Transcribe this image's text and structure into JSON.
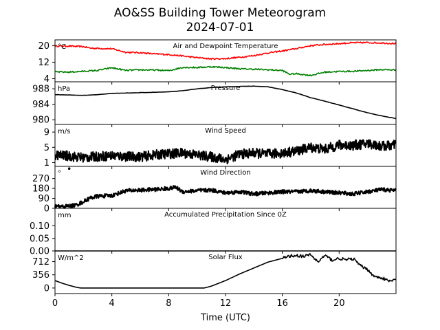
{
  "figure": {
    "title_line1": "AO&SS Building Tower Meteorogram",
    "title_line2": "2024-07-01",
    "xlabel": "Time (UTC)",
    "x_ticks": [
      "0",
      "4",
      "8",
      "12",
      "16",
      "20"
    ]
  },
  "chart_data": [
    {
      "type": "line",
      "title": "Air and Dewpoint Temperature",
      "unit": "°C",
      "ylim": [
        2.5,
        22.8
      ],
      "y_ticks": [
        20,
        12,
        4
      ],
      "x_range": [
        0,
        24
      ],
      "series": [
        {
          "color": "#ff0000",
          "x": [
            0,
            1,
            2,
            2.5,
            3,
            4,
            5,
            6,
            7,
            8,
            9,
            10,
            11,
            12,
            13,
            14,
            15,
            16,
            17,
            18,
            19,
            20,
            21,
            22,
            23,
            24
          ],
          "values": [
            19.8,
            19.8,
            19.5,
            18.8,
            18.7,
            18.5,
            16.8,
            16.6,
            16.0,
            15.7,
            15.0,
            14.2,
            13.6,
            13.7,
            14.4,
            15.2,
            16.5,
            17.4,
            18.6,
            20.0,
            20.6,
            21.0,
            21.4,
            21.5,
            21.3,
            21.0
          ]
        },
        {
          "color": "#008000",
          "x": [
            0,
            1,
            2,
            3,
            4,
            5,
            6,
            7,
            8,
            9,
            10,
            11,
            12,
            13,
            14,
            15,
            16,
            16.5,
            17,
            18,
            19,
            20,
            21,
            22,
            23,
            24
          ],
          "values": [
            7.3,
            7.2,
            7.6,
            8.0,
            9.3,
            8.0,
            8.3,
            8.2,
            7.9,
            9.5,
            9.4,
            9.8,
            9.4,
            8.8,
            8.6,
            8.3,
            8.0,
            6.2,
            6.4,
            5.6,
            7.2,
            7.5,
            7.6,
            8.0,
            8.4,
            8.2
          ]
        }
      ]
    },
    {
      "type": "line",
      "title": "Pressure",
      "unit": "hPa",
      "ylim": [
        978.8,
        989.8
      ],
      "y_ticks": [
        988,
        984,
        980
      ],
      "x_range": [
        0,
        24
      ],
      "series": [
        {
          "color": "#000000",
          "x": [
            0,
            1,
            2,
            3,
            4,
            5,
            6,
            7,
            8,
            9,
            10,
            11,
            12,
            13,
            14,
            15,
            16,
            17,
            18,
            19,
            20,
            21,
            22,
            23,
            24
          ],
          "values": [
            986.5,
            986.4,
            986.3,
            986.5,
            986.8,
            986.9,
            987.0,
            987.1,
            987.2,
            987.5,
            988.0,
            988.3,
            988.5,
            988.6,
            988.7,
            988.5,
            987.8,
            986.9,
            985.7,
            984.8,
            983.8,
            982.8,
            981.8,
            981.0,
            980.3
          ]
        }
      ]
    },
    {
      "type": "line",
      "title": "Wind Speed",
      "unit": "m/s",
      "ylim": [
        0,
        11
      ],
      "y_ticks": [
        9,
        5,
        1
      ],
      "x_range": [
        0,
        24
      ],
      "series": [
        {
          "color": "#000000",
          "x": [
            0,
            1,
            2,
            3,
            4,
            5,
            6,
            7,
            8,
            9,
            10,
            11,
            12,
            13,
            14,
            15,
            16,
            17,
            18,
            19,
            20,
            21,
            22,
            23,
            24
          ],
          "values": [
            3.0,
            2.7,
            2.3,
            2.6,
            2.8,
            2.6,
            2.5,
            3.0,
            3.3,
            3.5,
            3.0,
            2.5,
            1.8,
            3.2,
            3.5,
            3.2,
            3.5,
            4.0,
            5.0,
            4.5,
            5.6,
            5.5,
            6.0,
            5.3,
            5.6
          ]
        }
      ]
    },
    {
      "type": "line",
      "title": "Wind Direction",
      "unit": "°",
      "ylim": [
        0,
        380
      ],
      "y_ticks": [
        270,
        180,
        90,
        0
      ],
      "x_range": [
        0,
        24
      ],
      "series": [
        {
          "color": "#000000",
          "x": [
            0,
            0.5,
            1,
            1.5,
            2,
            2.5,
            3,
            4,
            5,
            6,
            7,
            8,
            8.5,
            9,
            10,
            11,
            12,
            13,
            14,
            15,
            16,
            17,
            18,
            19,
            20,
            21,
            22,
            23,
            24
          ],
          "values": [
            20,
            15,
            20,
            30,
            60,
            95,
            110,
            115,
            160,
            165,
            170,
            180,
            190,
            150,
            160,
            165,
            140,
            150,
            130,
            140,
            150,
            150,
            160,
            150,
            140,
            130,
            150,
            170,
            160
          ]
        }
      ],
      "outliers": [
        {
          "x": 1.0,
          "y": 360
        }
      ]
    },
    {
      "type": "line",
      "title": "Accumulated Precipitation Since 0Z",
      "unit": "mm",
      "ylim": [
        0,
        0.17
      ],
      "y_ticks": [
        "0.10",
        "0.05",
        "0.00"
      ],
      "y_tick_values": [
        0.1,
        0.05,
        0.0
      ],
      "x_range": [
        0,
        24
      ],
      "series": [
        {
          "color": "#000000",
          "x": [
            0,
            24
          ],
          "values": [
            0,
            0
          ]
        }
      ]
    },
    {
      "type": "line",
      "title": "Solar Flux",
      "unit": "W/m^2",
      "ylim": [
        -150,
        1000
      ],
      "y_ticks": [
        712,
        356,
        0
      ],
      "x_range": [
        0,
        24
      ],
      "series": [
        {
          "color": "#000000",
          "x": [
            0,
            0.5,
            1,
            1.5,
            1.8,
            4,
            6,
            8,
            10,
            10.5,
            11,
            12,
            13,
            14,
            15,
            16,
            16.5,
            17,
            17.5,
            18,
            18.5,
            19,
            19.5,
            20,
            20.5,
            21,
            21.5,
            22,
            22.5,
            23,
            23.5,
            24
          ],
          "values": [
            200,
            130,
            70,
            20,
            0,
            0,
            0,
            0,
            0,
            0,
            50,
            200,
            380,
            540,
            700,
            800,
            860,
            880,
            850,
            900,
            700,
            880,
            750,
            800,
            760,
            790,
            600,
            500,
            300,
            280,
            180,
            220
          ]
        }
      ]
    }
  ]
}
